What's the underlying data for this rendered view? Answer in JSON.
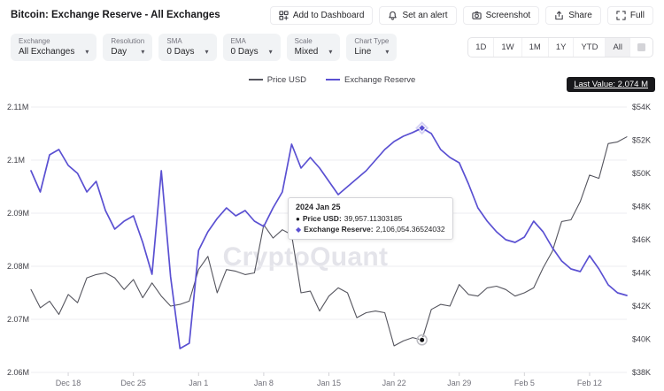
{
  "header": {
    "title": "Bitcoin: Exchange Reserve - All Exchanges",
    "actions": [
      {
        "label": "Add to Dashboard",
        "icon": "dashboard-icon"
      },
      {
        "label": "Set an alert",
        "icon": "bell-icon"
      },
      {
        "label": "Screenshot",
        "icon": "camera-icon"
      },
      {
        "label": "Share",
        "icon": "share-icon"
      },
      {
        "label": "Full",
        "icon": "expand-icon"
      }
    ]
  },
  "toolbar": {
    "controls": [
      {
        "label": "Exchange",
        "value": "All Exchanges"
      },
      {
        "label": "Resolution",
        "value": "Day"
      },
      {
        "label": "SMA",
        "value": "0 Days"
      },
      {
        "label": "EMA",
        "value": "0 Days"
      },
      {
        "label": "Scale",
        "value": "Mixed"
      },
      {
        "label": "Chart Type",
        "value": "Line"
      }
    ],
    "ranges": [
      {
        "label": "1D"
      },
      {
        "label": "1W"
      },
      {
        "label": "1M"
      },
      {
        "label": "1Y"
      },
      {
        "label": "YTD"
      },
      {
        "label": "All"
      }
    ],
    "active_range": "All"
  },
  "legend": {
    "items": [
      {
        "name": "Price USD",
        "color": "#55555e"
      },
      {
        "name": "Exchange Reserve",
        "color": "#5a50d2"
      }
    ],
    "last_value": "Last Value: 2.074 M"
  },
  "tooltip": {
    "date": "2024 Jan 25",
    "rows": [
      {
        "marker": "●",
        "color": "#1a1a1e",
        "label": "Price USD:",
        "value": "39,957.11303185"
      },
      {
        "marker": "◆",
        "color": "#5a50d2",
        "label": "Exchange Reserve:",
        "value": "2,106,054.36524032"
      }
    ]
  },
  "watermark": "CryptoQuant",
  "chart_data": {
    "type": "line",
    "title": "Bitcoin: Exchange Reserve - All Exchanges",
    "x_tick_labels": [
      "Dec 18",
      "Dec 25",
      "Jan 1",
      "Jan 8",
      "Jan 15",
      "Jan 22",
      "Jan 29",
      "Feb 5",
      "Feb 12"
    ],
    "x_tick_indices": [
      4,
      11,
      18,
      25,
      32,
      39,
      46,
      53,
      60
    ],
    "highlight_index": 42,
    "highlight_date": "2024 Jan 25",
    "left_axis": {
      "title": "Exchange Reserve",
      "tick_labels": [
        "2.11M",
        "2.1M",
        "2.09M",
        "2.08M",
        "2.07M",
        "2.06M"
      ],
      "tick_values": [
        2.11,
        2.1,
        2.09,
        2.08,
        2.07,
        2.06
      ],
      "min": 2.06,
      "max": 2.11
    },
    "right_axis": {
      "title": "Price USD",
      "tick_labels": [
        "$54K",
        "$52K",
        "$50K",
        "$48K",
        "$46K",
        "$44K",
        "$42K",
        "$40K",
        "$38K"
      ],
      "tick_values": [
        54,
        52,
        50,
        48,
        46,
        44,
        42,
        40,
        38
      ],
      "min": 38,
      "max": 54
    },
    "series": [
      {
        "name": "Price USD",
        "axis": "right",
        "color": "#55555e",
        "unit": "K USD",
        "values": [
          43.0,
          41.9,
          42.3,
          41.5,
          42.7,
          42.2,
          43.7,
          43.9,
          44.0,
          43.7,
          43.0,
          43.6,
          42.5,
          43.4,
          42.6,
          42.0,
          42.1,
          42.3,
          44.2,
          45.0,
          42.8,
          44.2,
          44.1,
          43.9,
          44.0,
          46.9,
          46.1,
          46.6,
          46.3,
          42.8,
          42.9,
          41.7,
          42.6,
          43.1,
          42.8,
          41.3,
          41.6,
          41.7,
          41.6,
          39.6,
          39.9,
          40.1,
          39.957,
          41.8,
          42.1,
          42.0,
          43.3,
          42.7,
          42.6,
          43.1,
          43.2,
          43.0,
          42.6,
          42.8,
          43.1,
          44.3,
          45.3,
          47.1,
          47.2,
          48.3,
          49.9,
          49.7,
          51.8,
          51.9,
          52.2
        ]
      },
      {
        "name": "Exchange Reserve",
        "axis": "left",
        "color": "#5a50d2",
        "unit": "M BTC",
        "values": [
          2.098,
          2.094,
          2.101,
          2.102,
          2.099,
          2.0975,
          2.094,
          2.096,
          2.0905,
          2.087,
          2.0885,
          2.0895,
          2.0845,
          2.0785,
          2.098,
          2.078,
          2.0645,
          2.0655,
          2.083,
          2.0865,
          2.089,
          2.091,
          2.0895,
          2.0905,
          2.0885,
          2.0875,
          2.091,
          2.094,
          2.103,
          2.0985,
          2.1005,
          2.0985,
          2.096,
          2.0935,
          2.095,
          2.0965,
          2.098,
          2.1,
          2.102,
          2.1035,
          2.1045,
          2.1052,
          2.10605,
          2.105,
          2.102,
          2.1005,
          2.0995,
          2.0955,
          2.091,
          2.0885,
          2.0865,
          2.085,
          2.0845,
          2.0855,
          2.0885,
          2.0865,
          2.0835,
          2.081,
          2.0795,
          2.079,
          2.082,
          2.0795,
          2.0765,
          2.075,
          2.0745
        ]
      }
    ],
    "last_value_label": "Last Value: 2.074 M"
  }
}
